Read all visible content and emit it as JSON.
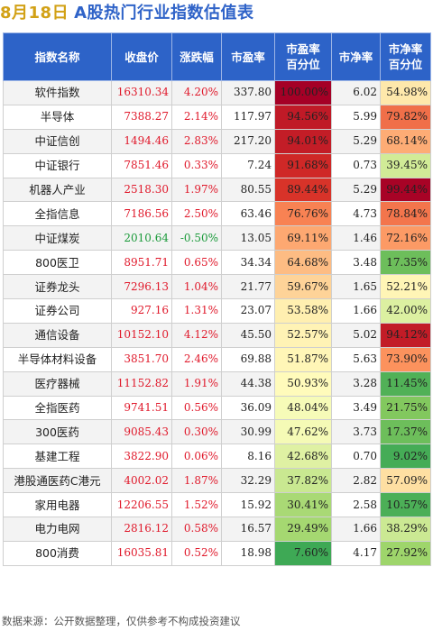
{
  "header": {
    "date": "8月18日",
    "title": "A股热门行业指数估值表"
  },
  "columns": [
    "指数名称",
    "收盘价",
    "涨跌幅",
    "市盈率",
    "市盈率\n百分位",
    "市净率",
    "市净率\n百分位"
  ],
  "rows": [
    {
      "name": "软件指数",
      "close": "16310.34",
      "change": "4.20%",
      "pe": "337.80",
      "pe_pct": "100.00%",
      "pb": "6.02",
      "pb_pct": "54.98%",
      "pe_pct_val": 100.0,
      "pb_pct_val": 54.98
    },
    {
      "name": "半导体",
      "close": "7388.27",
      "change": "2.14%",
      "pe": "117.97",
      "pe_pct": "94.56%",
      "pb": "5.99",
      "pb_pct": "79.82%",
      "pe_pct_val": 94.56,
      "pb_pct_val": 79.82
    },
    {
      "name": "中证信创",
      "close": "1494.46",
      "change": "2.83%",
      "pe": "217.20",
      "pe_pct": "94.01%",
      "pb": "5.29",
      "pb_pct": "68.14%",
      "pe_pct_val": 94.01,
      "pb_pct_val": 68.14
    },
    {
      "name": "中证银行",
      "close": "7851.46",
      "change": "0.33%",
      "pe": "7.24",
      "pe_pct": "91.68%",
      "pb": "0.73",
      "pb_pct": "39.45%",
      "pe_pct_val": 91.68,
      "pb_pct_val": 39.45
    },
    {
      "name": "机器人产业",
      "close": "2518.30",
      "change": "1.97%",
      "pe": "80.55",
      "pe_pct": "89.44%",
      "pb": "5.29",
      "pb_pct": "99.44%",
      "pe_pct_val": 89.44,
      "pb_pct_val": 99.44
    },
    {
      "name": "全指信息",
      "close": "7186.56",
      "change": "2.50%",
      "pe": "63.46",
      "pe_pct": "76.76%",
      "pb": "4.73",
      "pb_pct": "78.84%",
      "pe_pct_val": 76.76,
      "pb_pct_val": 78.84
    },
    {
      "name": "中证煤炭",
      "close": "2010.64",
      "change": "-0.50%",
      "pe": "13.05",
      "pe_pct": "69.11%",
      "pb": "1.46",
      "pb_pct": "72.16%",
      "pe_pct_val": 69.11,
      "pb_pct_val": 72.16
    },
    {
      "name": "800医卫",
      "close": "8951.71",
      "change": "0.65%",
      "pe": "34.34",
      "pe_pct": "64.68%",
      "pb": "3.48",
      "pb_pct": "17.35%",
      "pe_pct_val": 64.68,
      "pb_pct_val": 17.35
    },
    {
      "name": "证券龙头",
      "close": "7296.13",
      "change": "1.04%",
      "pe": "21.77",
      "pe_pct": "59.67%",
      "pb": "1.65",
      "pb_pct": "52.21%",
      "pe_pct_val": 59.67,
      "pb_pct_val": 52.21
    },
    {
      "name": "证券公司",
      "close": "927.16",
      "change": "1.31%",
      "pe": "23.07",
      "pe_pct": "53.58%",
      "pb": "1.66",
      "pb_pct": "42.00%",
      "pe_pct_val": 53.58,
      "pb_pct_val": 42.0
    },
    {
      "name": "通信设备",
      "close": "10152.10",
      "change": "4.12%",
      "pe": "45.50",
      "pe_pct": "52.57%",
      "pb": "5.02",
      "pb_pct": "94.12%",
      "pe_pct_val": 52.57,
      "pb_pct_val": 94.12
    },
    {
      "name": "半导体材料设备",
      "close": "3851.70",
      "change": "2.46%",
      "pe": "69.88",
      "pe_pct": "51.87%",
      "pb": "5.63",
      "pb_pct": "73.90%",
      "pe_pct_val": 51.87,
      "pb_pct_val": 73.9
    },
    {
      "name": "医疗器械",
      "close": "11152.82",
      "change": "1.91%",
      "pe": "44.38",
      "pe_pct": "50.93%",
      "pb": "3.28",
      "pb_pct": "11.45%",
      "pe_pct_val": 50.93,
      "pb_pct_val": 11.45
    },
    {
      "name": "全指医药",
      "close": "9741.51",
      "change": "0.56%",
      "pe": "36.09",
      "pe_pct": "48.04%",
      "pb": "3.49",
      "pb_pct": "21.75%",
      "pe_pct_val": 48.04,
      "pb_pct_val": 21.75
    },
    {
      "name": "300医药",
      "close": "9085.43",
      "change": "0.30%",
      "pe": "30.99",
      "pe_pct": "47.62%",
      "pb": "3.73",
      "pb_pct": "17.37%",
      "pe_pct_val": 47.62,
      "pb_pct_val": 17.37
    },
    {
      "name": "基建工程",
      "close": "3822.90",
      "change": "0.06%",
      "pe": "8.16",
      "pe_pct": "42.68%",
      "pb": "0.70",
      "pb_pct": "9.02%",
      "pe_pct_val": 42.68,
      "pb_pct_val": 9.02
    },
    {
      "name": "港股通医药C港元",
      "close": "4002.02",
      "change": "1.87%",
      "pe": "32.29",
      "pe_pct": "37.82%",
      "pb": "2.82",
      "pb_pct": "57.09%",
      "pe_pct_val": 37.82,
      "pb_pct_val": 57.09
    },
    {
      "name": "家用电器",
      "close": "12206.55",
      "change": "1.52%",
      "pe": "15.92",
      "pe_pct": "30.41%",
      "pb": "2.58",
      "pb_pct": "10.57%",
      "pe_pct_val": 30.41,
      "pb_pct_val": 10.57
    },
    {
      "name": "电力电网",
      "close": "2816.12",
      "change": "0.58%",
      "pe": "16.57",
      "pe_pct": "29.49%",
      "pb": "1.66",
      "pb_pct": "38.29%",
      "pe_pct_val": 29.49,
      "pb_pct_val": 38.29
    },
    {
      "name": "800消费",
      "close": "16035.81",
      "change": "0.52%",
      "pe": "18.98",
      "pe_pct": "7.60%",
      "pb": "4.17",
      "pb_pct": "27.92%",
      "pe_pct_val": 7.6,
      "pb_pct_val": 27.92
    }
  ],
  "colors": {
    "header_bg": "#2d63c8",
    "up": "#e0192b",
    "down": "#1a9a3a",
    "heat_low": "#1a9850",
    "heat_mid": "#ffffbf",
    "heat_high": "#a50026"
  },
  "footer": {
    "text": "数据来源：公开数据整理，仅供参考不构成投资建议"
  }
}
